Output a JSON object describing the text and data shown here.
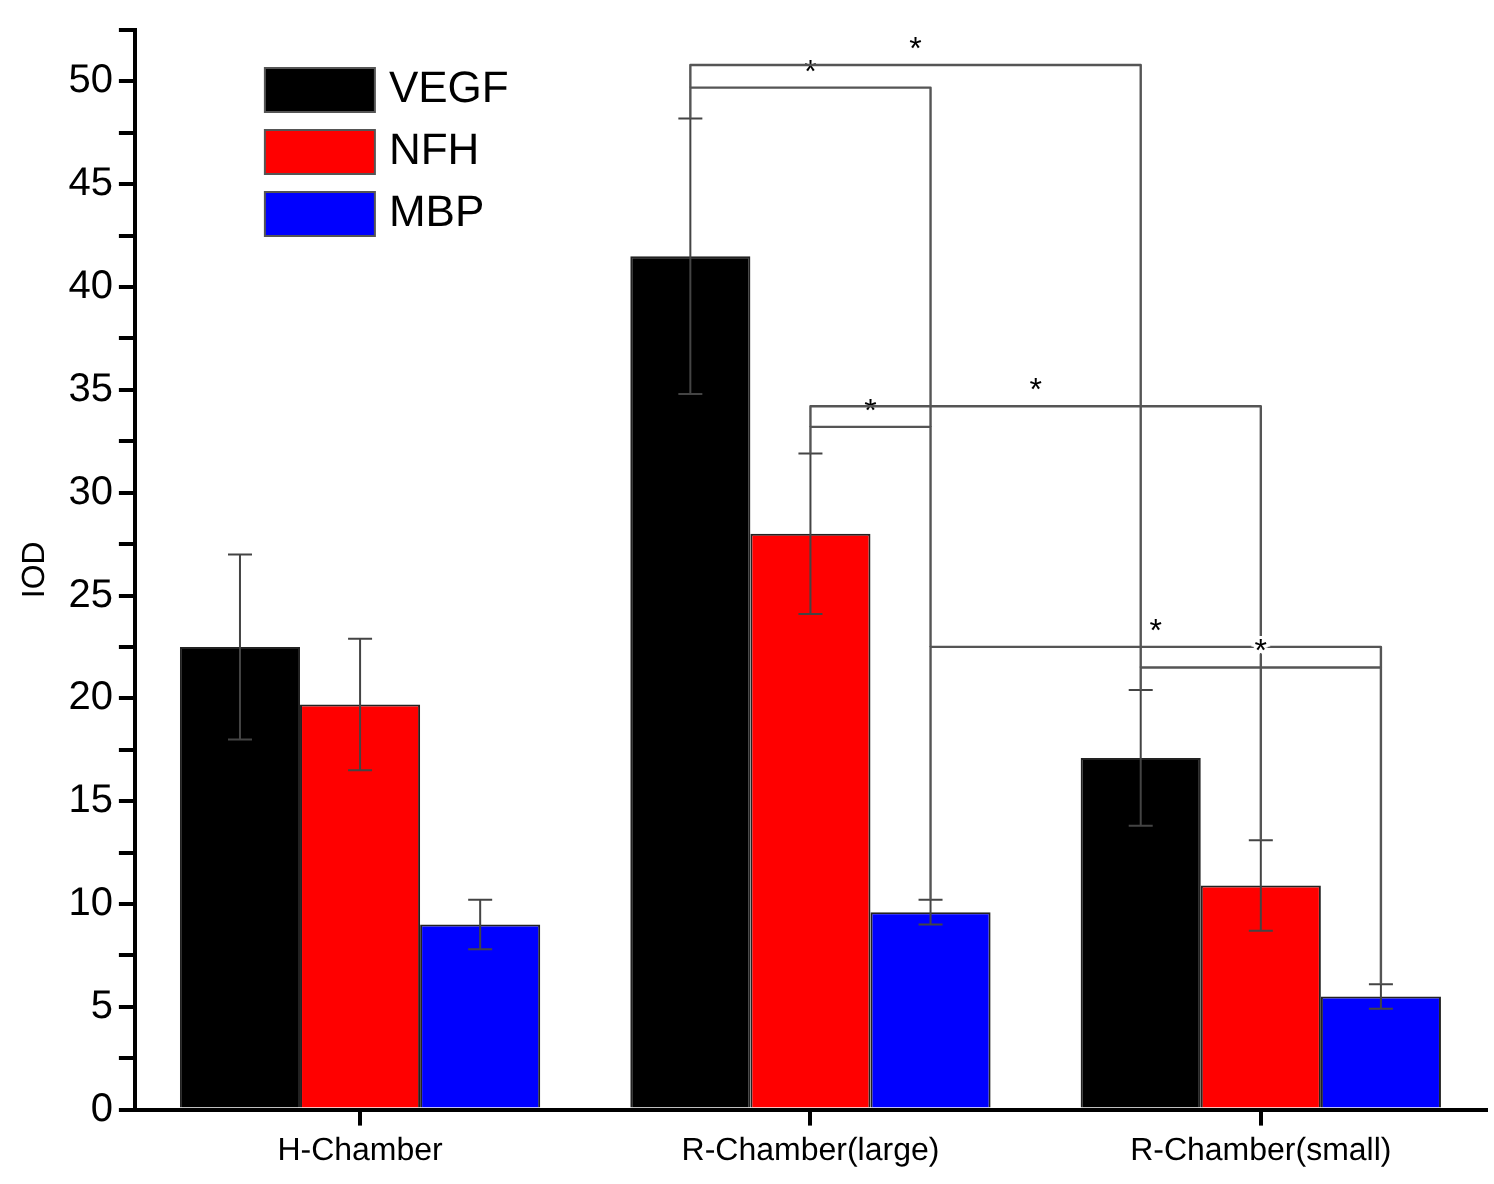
{
  "chart_data": {
    "type": "bar",
    "ylabel": "IOD",
    "categories": [
      "H-Chamber",
      "R-Chamber(large)",
      "R-Chamber(small)"
    ],
    "series": [
      {
        "name": "VEGF",
        "color": "#000000",
        "values": [
          22.5,
          41.5,
          17.1
        ],
        "errors": [
          4.5,
          6.7,
          3.3
        ]
      },
      {
        "name": "NFH",
        "color": "#ff0000",
        "values": [
          19.7,
          28.0,
          10.9
        ],
        "errors": [
          3.2,
          3.9,
          2.2
        ]
      },
      {
        "name": "MBP",
        "color": "#0000ff",
        "values": [
          9.0,
          9.6,
          5.5
        ],
        "errors": [
          1.2,
          0.6,
          0.6
        ]
      }
    ],
    "ylim": [
      0,
      52.5
    ],
    "yticks": [
      0,
      {
        "value": 2.5,
        "label": null
      },
      5,
      {
        "value": 7.5,
        "label": null
      },
      10,
      {
        "value": 12.5,
        "label": null
      },
      15,
      {
        "value": 17.5,
        "label": null
      },
      20,
      {
        "value": 22.5,
        "label": null
      },
      25,
      {
        "value": 27.5,
        "label": null
      },
      30,
      {
        "value": 32.5,
        "label": null
      },
      35,
      {
        "value": 37.5,
        "label": null
      },
      40,
      {
        "value": 42.5,
        "label": null
      },
      45,
      {
        "value": 47.5,
        "label": null
      },
      50,
      {
        "value": 52.5,
        "label": null
      }
    ],
    "grid": false,
    "legend": "top left",
    "annotations": [
      "*",
      "*",
      "*",
      "*",
      "*",
      "*"
    ]
  }
}
